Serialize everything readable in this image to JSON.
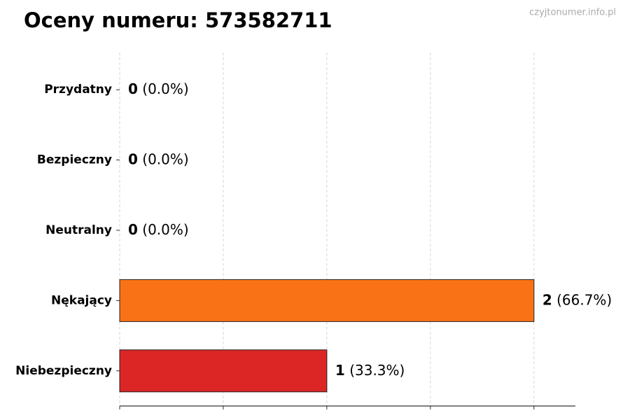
{
  "chart_data": {
    "type": "hbar",
    "title": "Oceny numeru: 573582711",
    "watermark": "czyjtonumer.info.pl",
    "categories": [
      "Przydatny",
      "Bezpieczny",
      "Neutralny",
      "Nękający",
      "Niebezpieczny"
    ],
    "values": [
      0,
      0,
      0,
      2,
      1
    ],
    "percent_labels": [
      "(0.0%)",
      "(0.0%)",
      "(0.0%)",
      "(66.7%)",
      "(33.3%)"
    ],
    "colors": [
      "#22a34a",
      "#3b82f6",
      "#9ca3af",
      "#f97316",
      "#dc2626"
    ],
    "xlim": [
      0,
      2.2
    ],
    "xticks": [
      0,
      0.5,
      1,
      1.5,
      2
    ],
    "grid": true
  }
}
